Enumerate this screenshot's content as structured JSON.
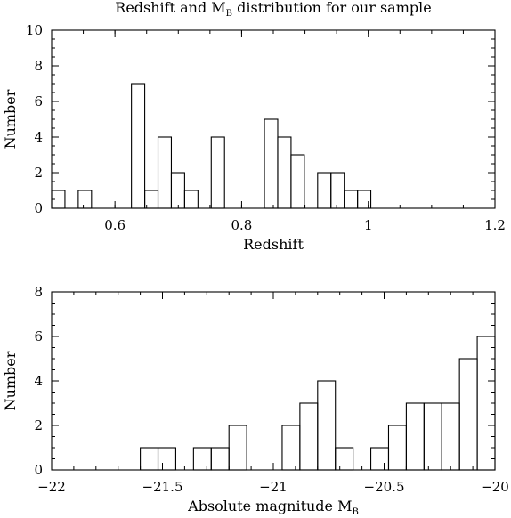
{
  "chart_data": [
    {
      "type": "bar",
      "title": "Redshift and M",
      "title_subscript": "B",
      "title_suffix": " distribution for our sample",
      "xlabel": "Redshift",
      "ylabel": "Number",
      "xlim": [
        0.5,
        1.2
      ],
      "ylim": [
        0,
        10
      ],
      "bin_width": 0.021,
      "bins": [
        {
          "x0": 0.5,
          "x1": 0.521,
          "value": 1
        },
        {
          "x0": 0.521,
          "x1": 0.542,
          "value": 0
        },
        {
          "x0": 0.542,
          "x1": 0.563,
          "value": 1
        },
        {
          "x0": 0.563,
          "x1": 0.584,
          "value": 0
        },
        {
          "x0": 0.584,
          "x1": 0.605,
          "value": 0
        },
        {
          "x0": 0.605,
          "x1": 0.626,
          "value": 0
        },
        {
          "x0": 0.626,
          "x1": 0.647,
          "value": 7
        },
        {
          "x0": 0.647,
          "x1": 0.668,
          "value": 1
        },
        {
          "x0": 0.668,
          "x1": 0.689,
          "value": 4
        },
        {
          "x0": 0.689,
          "x1": 0.71,
          "value": 2
        },
        {
          "x0": 0.71,
          "x1": 0.731,
          "value": 1
        },
        {
          "x0": 0.731,
          "x1": 0.752,
          "value": 0
        },
        {
          "x0": 0.752,
          "x1": 0.773,
          "value": 4
        },
        {
          "x0": 0.773,
          "x1": 0.794,
          "value": 0
        },
        {
          "x0": 0.794,
          "x1": 0.815,
          "value": 0
        },
        {
          "x0": 0.815,
          "x1": 0.836,
          "value": 0
        },
        {
          "x0": 0.836,
          "x1": 0.857,
          "value": 5
        },
        {
          "x0": 0.857,
          "x1": 0.878,
          "value": 4
        },
        {
          "x0": 0.878,
          "x1": 0.899,
          "value": 3
        },
        {
          "x0": 0.899,
          "x1": 0.92,
          "value": 0
        },
        {
          "x0": 0.92,
          "x1": 0.941,
          "value": 2
        },
        {
          "x0": 0.941,
          "x1": 0.962,
          "value": 2
        },
        {
          "x0": 0.962,
          "x1": 0.983,
          "value": 1
        },
        {
          "x0": 0.983,
          "x1": 1.004,
          "value": 1
        },
        {
          "x0": 1.004,
          "x1": 1.025,
          "value": 0
        },
        {
          "x0": 1.025,
          "x1": 1.046,
          "value": 0
        },
        {
          "x0": 1.046,
          "x1": 1.067,
          "value": 0
        },
        {
          "x0": 1.067,
          "x1": 1.088,
          "value": 0
        },
        {
          "x0": 1.088,
          "x1": 1.109,
          "value": 0
        },
        {
          "x0": 1.109,
          "x1": 1.13,
          "value": 0
        }
      ],
      "xticks": [
        {
          "value": 0.6,
          "label": "0.6"
        },
        {
          "value": 0.8,
          "label": "0.8"
        },
        {
          "value": 1.0,
          "label": "1"
        },
        {
          "value": 1.2,
          "label": "1.2"
        }
      ],
      "yticks": [
        {
          "value": 0,
          "label": "0"
        },
        {
          "value": 2,
          "label": "2"
        },
        {
          "value": 4,
          "label": "4"
        },
        {
          "value": 6,
          "label": "6"
        },
        {
          "value": 8,
          "label": "8"
        },
        {
          "value": 10,
          "label": "10"
        }
      ],
      "x_minor_step": 0.05,
      "y_minor_step": 0.5,
      "grid": false
    },
    {
      "type": "bar",
      "title": "",
      "xlabel": "Absolute magnitude M",
      "xlabel_subscript": "B",
      "ylabel": "Number",
      "xlim": [
        -22,
        -20
      ],
      "ylim": [
        0,
        8
      ],
      "bins": [
        {
          "x0": -21.6,
          "x1": -21.52,
          "value": 1
        },
        {
          "x0": -21.52,
          "x1": -21.44,
          "value": 1
        },
        {
          "x0": -21.44,
          "x1": -21.36,
          "value": 0
        },
        {
          "x0": -21.36,
          "x1": -21.28,
          "value": 1
        },
        {
          "x0": -21.28,
          "x1": -21.2,
          "value": 1
        },
        {
          "x0": -21.2,
          "x1": -21.12,
          "value": 2
        },
        {
          "x0": -21.12,
          "x1": -21.04,
          "value": 0
        },
        {
          "x0": -21.04,
          "x1": -20.96,
          "value": 0
        },
        {
          "x0": -20.96,
          "x1": -20.88,
          "value": 2
        },
        {
          "x0": -20.88,
          "x1": -20.8,
          "value": 3
        },
        {
          "x0": -20.8,
          "x1": -20.72,
          "value": 4
        },
        {
          "x0": -20.72,
          "x1": -20.64,
          "value": 1
        },
        {
          "x0": -20.64,
          "x1": -20.56,
          "value": 0
        },
        {
          "x0": -20.56,
          "x1": -20.48,
          "value": 1
        },
        {
          "x0": -20.48,
          "x1": -20.4,
          "value": 2
        },
        {
          "x0": -20.4,
          "x1": -20.32,
          "value": 3
        },
        {
          "x0": -20.32,
          "x1": -20.24,
          "value": 3
        },
        {
          "x0": -20.24,
          "x1": -20.16,
          "value": 3
        },
        {
          "x0": -20.16,
          "x1": -20.08,
          "value": 5
        },
        {
          "x0": -20.08,
          "x1": -20.0,
          "value": 6
        }
      ],
      "xticks": [
        {
          "value": -22,
          "label": "−22"
        },
        {
          "value": -21.5,
          "label": "−21.5"
        },
        {
          "value": -21,
          "label": "−21"
        },
        {
          "value": -20.5,
          "label": "−20.5"
        },
        {
          "value": -20,
          "label": "−20"
        }
      ],
      "yticks": [
        {
          "value": 0,
          "label": "0"
        },
        {
          "value": 2,
          "label": "2"
        },
        {
          "value": 4,
          "label": "4"
        },
        {
          "value": 6,
          "label": "6"
        },
        {
          "value": 8,
          "label": "8"
        }
      ],
      "x_minor_step": 0.1,
      "y_minor_step": 0.5,
      "grid": false
    }
  ]
}
